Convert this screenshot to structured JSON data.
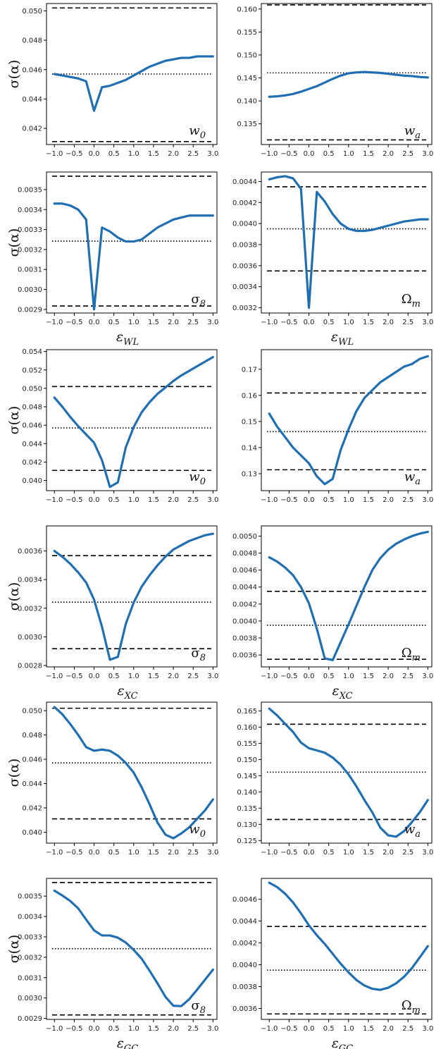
{
  "figure": {
    "ylabel": "σ(α)",
    "colors": {
      "curve": "#1f6fb2",
      "reference": "#000000",
      "axes": "#000000"
    }
  },
  "chart_data": [
    {
      "type": "line",
      "row": 0,
      "col": 0,
      "param": "w",
      "param_sub": "0",
      "xlabel_main": "",
      "xlabel_sub": "",
      "x": [
        -1.0,
        -0.8,
        -0.6,
        -0.4,
        -0.2,
        0.0,
        0.2,
        0.4,
        0.6,
        0.8,
        1.0,
        1.2,
        1.4,
        1.6,
        1.8,
        2.0,
        2.2,
        2.4,
        2.6,
        2.8,
        3.0
      ],
      "y": [
        0.0457,
        0.0456,
        0.0455,
        0.0454,
        0.0452,
        0.0432,
        0.0448,
        0.0449,
        0.0451,
        0.0453,
        0.0456,
        0.0459,
        0.0462,
        0.0464,
        0.0466,
        0.0467,
        0.0468,
        0.0468,
        0.0469,
        0.0469,
        0.0469
      ],
      "ylim": [
        0.0409,
        0.0505
      ],
      "yticks": [
        0.042,
        0.044,
        0.046,
        0.048,
        0.05
      ],
      "ytick_labels": [
        "0.042",
        "0.044",
        "0.046",
        "0.048",
        "0.050"
      ],
      "ref_dashed": [
        0.0502,
        0.0411
      ],
      "ref_dotted": 0.0457
    },
    {
      "type": "line",
      "row": 0,
      "col": 1,
      "param": "w",
      "param_sub": "a",
      "xlabel_main": "",
      "xlabel_sub": "",
      "x": [
        -1.0,
        -0.8,
        -0.6,
        -0.4,
        -0.2,
        0.0,
        0.2,
        0.4,
        0.6,
        0.8,
        1.0,
        1.2,
        1.4,
        1.6,
        1.8,
        2.0,
        2.2,
        2.4,
        2.6,
        2.8,
        3.0
      ],
      "y": [
        0.1409,
        0.141,
        0.1412,
        0.1415,
        0.142,
        0.1426,
        0.1432,
        0.144,
        0.1448,
        0.1455,
        0.146,
        0.1462,
        0.1463,
        0.1462,
        0.1461,
        0.1459,
        0.1457,
        0.1455,
        0.1454,
        0.1452,
        0.1451
      ],
      "ylim": [
        0.1305,
        0.1612
      ],
      "yticks": [
        0.135,
        0.14,
        0.145,
        0.15,
        0.155,
        0.16
      ],
      "ytick_labels": [
        "0.135",
        "0.140",
        "0.145",
        "0.150",
        "0.155",
        "0.160"
      ],
      "ref_dashed": [
        0.1609,
        0.1315
      ],
      "ref_dotted": 0.1461
    },
    {
      "type": "line",
      "row": 1,
      "col": 0,
      "param": "σ",
      "param_sub": "8",
      "xlabel_main": "ε",
      "xlabel_sub": "WL",
      "x": [
        -1.0,
        -0.8,
        -0.6,
        -0.4,
        -0.2,
        0.0,
        0.2,
        0.4,
        0.6,
        0.8,
        1.0,
        1.2,
        1.4,
        1.6,
        1.8,
        2.0,
        2.2,
        2.4,
        2.6,
        2.8,
        3.0
      ],
      "y": [
        0.00343,
        0.00343,
        0.00342,
        0.0034,
        0.00335,
        0.0029,
        0.00331,
        0.00329,
        0.00326,
        0.00324,
        0.00324,
        0.00325,
        0.00328,
        0.00331,
        0.00333,
        0.00335,
        0.00336,
        0.00337,
        0.00337,
        0.00337,
        0.00337
      ],
      "ylim": [
        0.002882,
        0.003588
      ],
      "yticks": [
        0.0029,
        0.003,
        0.0031,
        0.0032,
        0.0033,
        0.0034,
        0.0035
      ],
      "ytick_labels": [
        "0.0029",
        "0.0030",
        "0.0031",
        "0.0032",
        "0.0033",
        "0.0034",
        "0.0035"
      ],
      "ref_dashed": [
        0.003567,
        0.002917
      ],
      "ref_dotted": 0.003242
    },
    {
      "type": "line",
      "row": 1,
      "col": 1,
      "param": "Ω",
      "param_sub": "m",
      "xlabel_main": "ε",
      "xlabel_sub": "WL",
      "x": [
        -1.0,
        -0.8,
        -0.6,
        -0.4,
        -0.2,
        0.0,
        0.2,
        0.4,
        0.6,
        0.8,
        1.0,
        1.2,
        1.4,
        1.6,
        1.8,
        2.0,
        2.2,
        2.4,
        2.6,
        2.8,
        3.0
      ],
      "y": [
        0.00442,
        0.00444,
        0.00445,
        0.00443,
        0.00433,
        0.0032,
        0.0043,
        0.00421,
        0.00409,
        0.004,
        0.00395,
        0.00393,
        0.00393,
        0.00394,
        0.00396,
        0.00398,
        0.004,
        0.00402,
        0.00403,
        0.00404,
        0.00404
      ],
      "ylim": [
        0.00315,
        0.00449
      ],
      "yticks": [
        0.0032,
        0.0034,
        0.0036,
        0.0038,
        0.004,
        0.0042,
        0.0044
      ],
      "ytick_labels": [
        "0.0032",
        "0.0034",
        "0.0036",
        "0.0038",
        "0.0040",
        "0.0042",
        "0.0044"
      ],
      "ref_dashed": [
        0.00435,
        0.00355
      ],
      "ref_dotted": 0.00395
    },
    {
      "type": "line",
      "row": 2,
      "col": 0,
      "param": "w",
      "param_sub": "0",
      "xlabel_main": "",
      "xlabel_sub": "",
      "x": [
        -1.0,
        -0.8,
        -0.6,
        -0.4,
        -0.2,
        0.0,
        0.2,
        0.4,
        0.6,
        0.8,
        1.0,
        1.2,
        1.4,
        1.6,
        1.8,
        2.0,
        2.2,
        2.4,
        2.6,
        2.8,
        3.0
      ],
      "y": [
        0.049,
        0.048,
        0.0469,
        0.0459,
        0.045,
        0.0441,
        0.0422,
        0.0393,
        0.0398,
        0.0436,
        0.0458,
        0.0474,
        0.0485,
        0.0494,
        0.0501,
        0.0508,
        0.0514,
        0.0519,
        0.0524,
        0.0529,
        0.0534
      ],
      "ylim": [
        0.0389,
        0.0542
      ],
      "yticks": [
        0.04,
        0.042,
        0.044,
        0.046,
        0.048,
        0.05,
        0.052,
        0.054
      ],
      "ytick_labels": [
        "0.040",
        "0.042",
        "0.044",
        "0.046",
        "0.048",
        "0.050",
        "0.052",
        "0.054"
      ],
      "ref_dashed": [
        0.0502,
        0.0411
      ],
      "ref_dotted": 0.0457
    },
    {
      "type": "line",
      "row": 2,
      "col": 1,
      "param": "w",
      "param_sub": "a",
      "xlabel_main": "",
      "xlabel_sub": "",
      "x": [
        -1.0,
        -0.8,
        -0.6,
        -0.4,
        -0.2,
        0.0,
        0.2,
        0.4,
        0.6,
        0.8,
        1.0,
        1.2,
        1.4,
        1.6,
        1.8,
        2.0,
        2.2,
        2.4,
        2.6,
        2.8,
        3.0
      ],
      "y": [
        0.153,
        0.148,
        0.144,
        0.14,
        0.137,
        0.134,
        0.129,
        0.126,
        0.128,
        0.139,
        0.147,
        0.154,
        0.159,
        0.162,
        0.165,
        0.167,
        0.169,
        0.171,
        0.172,
        0.174,
        0.175
      ],
      "ylim": [
        0.1235,
        0.1775
      ],
      "yticks": [
        0.13,
        0.14,
        0.15,
        0.16,
        0.17
      ],
      "ytick_labels": [
        "0.13",
        "0.14",
        "0.15",
        "0.16",
        "0.17"
      ],
      "ref_dashed": [
        0.1609,
        0.1315
      ],
      "ref_dotted": 0.1461
    },
    {
      "type": "line",
      "row": 3,
      "col": 0,
      "param": "σ",
      "param_sub": "8",
      "xlabel_main": "ε",
      "xlabel_sub": "XC",
      "x": [
        -1.0,
        -0.8,
        -0.6,
        -0.4,
        -0.2,
        0.0,
        0.2,
        0.4,
        0.6,
        0.8,
        1.0,
        1.2,
        1.4,
        1.6,
        1.8,
        2.0,
        2.2,
        2.4,
        2.6,
        2.8,
        3.0
      ],
      "y": [
        0.0036,
        0.00356,
        0.00351,
        0.00345,
        0.00338,
        0.00326,
        0.00307,
        0.00284,
        0.00286,
        0.00309,
        0.00324,
        0.00335,
        0.00343,
        0.0035,
        0.00356,
        0.00361,
        0.00364,
        0.00367,
        0.00369,
        0.00371,
        0.00372
      ],
      "ylim": [
        0.00279,
        0.003775
      ],
      "yticks": [
        0.0028,
        0.003,
        0.0032,
        0.0034,
        0.0036
      ],
      "ytick_labels": [
        "0.0028",
        "0.0030",
        "0.0032",
        "0.0034",
        "0.0036"
      ],
      "ref_dashed": [
        0.003567,
        0.002917
      ],
      "ref_dotted": 0.003242
    },
    {
      "type": "line",
      "row": 3,
      "col": 1,
      "param": "Ω",
      "param_sub": "m",
      "xlabel_main": "ε",
      "xlabel_sub": "XC",
      "x": [
        -1.0,
        -0.8,
        -0.6,
        -0.4,
        -0.2,
        0.0,
        0.2,
        0.4,
        0.6,
        0.8,
        1.0,
        1.2,
        1.4,
        1.6,
        1.8,
        2.0,
        2.2,
        2.4,
        2.6,
        2.8,
        3.0
      ],
      "y": [
        0.00475,
        0.0047,
        0.00463,
        0.00454,
        0.0044,
        0.00421,
        0.00391,
        0.00356,
        0.00354,
        0.00375,
        0.00396,
        0.00418,
        0.0044,
        0.0046,
        0.00474,
        0.00484,
        0.00491,
        0.00496,
        0.005,
        0.00503,
        0.00505
      ],
      "ylim": [
        0.00346,
        0.00512
      ],
      "yticks": [
        0.0036,
        0.0038,
        0.004,
        0.0042,
        0.0044,
        0.0046,
        0.0048,
        0.005
      ],
      "ytick_labels": [
        "0.0036",
        "0.0038",
        "0.0040",
        "0.0042",
        "0.0044",
        "0.0046",
        "0.0048",
        "0.0050"
      ],
      "ref_dashed": [
        0.00435,
        0.00355
      ],
      "ref_dotted": 0.00395
    },
    {
      "type": "line",
      "row": 4,
      "col": 0,
      "param": "w",
      "param_sub": "0",
      "xlabel_main": "",
      "xlabel_sub": "",
      "x": [
        -1.0,
        -0.8,
        -0.6,
        -0.4,
        -0.2,
        0.0,
        0.2,
        0.4,
        0.6,
        0.8,
        1.0,
        1.2,
        1.4,
        1.6,
        1.8,
        2.0,
        2.2,
        2.4,
        2.6,
        2.8,
        3.0
      ],
      "y": [
        0.0503,
        0.0497,
        0.0489,
        0.048,
        0.047,
        0.0467,
        0.0468,
        0.0467,
        0.0463,
        0.0457,
        0.0449,
        0.0437,
        0.0423,
        0.0408,
        0.0398,
        0.0395,
        0.0399,
        0.0404,
        0.0411,
        0.0418,
        0.0427
      ],
      "ylim": [
        0.0391,
        0.0507
      ],
      "yticks": [
        0.04,
        0.042,
        0.044,
        0.046,
        0.048,
        0.05
      ],
      "ytick_labels": [
        "0.040",
        "0.042",
        "0.044",
        "0.046",
        "0.048",
        "0.050"
      ],
      "ref_dashed": [
        0.0502,
        0.0411
      ],
      "ref_dotted": 0.0457
    },
    {
      "type": "line",
      "row": 4,
      "col": 1,
      "param": "w",
      "param_sub": "a",
      "xlabel_main": "",
      "xlabel_sub": "",
      "x": [
        -1.0,
        -0.8,
        -0.6,
        -0.4,
        -0.2,
        0.0,
        0.2,
        0.4,
        0.6,
        0.8,
        1.0,
        1.2,
        1.4,
        1.6,
        1.8,
        2.0,
        2.2,
        2.4,
        2.6,
        2.8,
        3.0
      ],
      "y": [
        0.1657,
        0.1636,
        0.161,
        0.1585,
        0.1552,
        0.1535,
        0.1528,
        0.1521,
        0.1506,
        0.1484,
        0.1454,
        0.1417,
        0.1375,
        0.1337,
        0.129,
        0.1266,
        0.1262,
        0.1279,
        0.1307,
        0.1338,
        0.1375
      ],
      "ylim": [
        0.1242,
        0.1677
      ],
      "yticks": [
        0.125,
        0.13,
        0.135,
        0.14,
        0.145,
        0.15,
        0.155,
        0.16,
        0.165
      ],
      "ytick_labels": [
        "0.125",
        "0.130",
        "0.135",
        "0.140",
        "0.145",
        "0.150",
        "0.155",
        "0.160",
        "0.165"
      ],
      "ref_dashed": [
        0.1609,
        0.1315
      ],
      "ref_dotted": 0.1461
    },
    {
      "type": "line",
      "row": 5,
      "col": 0,
      "param": "σ",
      "param_sub": "8",
      "xlabel_main": "ε",
      "xlabel_sub": "GC",
      "x": [
        -1.0,
        -0.8,
        -0.6,
        -0.4,
        -0.2,
        0.0,
        0.2,
        0.4,
        0.6,
        0.8,
        1.0,
        1.2,
        1.4,
        1.6,
        1.8,
        2.0,
        2.2,
        2.4,
        2.6,
        2.8,
        3.0
      ],
      "y": [
        0.003527,
        0.003503,
        0.003476,
        0.00344,
        0.003385,
        0.003332,
        0.003307,
        0.003307,
        0.003296,
        0.003272,
        0.003236,
        0.003193,
        0.003134,
        0.003072,
        0.003006,
        0.002962,
        0.00296,
        0.002994,
        0.003041,
        0.00309,
        0.003139
      ],
      "ylim": [
        0.002895,
        0.003587
      ],
      "yticks": [
        0.0029,
        0.003,
        0.0031,
        0.0032,
        0.0033,
        0.0034,
        0.0035
      ],
      "ytick_labels": [
        "0.0029",
        "0.0030",
        "0.0031",
        "0.0032",
        "0.0033",
        "0.0034",
        "0.0035"
      ],
      "ref_dashed": [
        0.003567,
        0.002917
      ],
      "ref_dotted": 0.003242
    },
    {
      "type": "line",
      "row": 5,
      "col": 1,
      "param": "Ω",
      "param_sub": "m",
      "xlabel_main": "ε",
      "xlabel_sub": "GC",
      "x": [
        -1.0,
        -0.8,
        -0.6,
        -0.4,
        -0.2,
        0.0,
        0.2,
        0.4,
        0.6,
        0.8,
        1.0,
        1.2,
        1.4,
        1.6,
        1.8,
        2.0,
        2.2,
        2.4,
        2.6,
        2.8,
        3.0
      ],
      "y": [
        0.00475,
        0.00471,
        0.00465,
        0.00457,
        0.00447,
        0.00436,
        0.00427,
        0.00419,
        0.0041,
        0.00401,
        0.00393,
        0.00386,
        0.00381,
        0.00378,
        0.00377,
        0.00379,
        0.00383,
        0.00389,
        0.00397,
        0.00407,
        0.00417
      ],
      "ylim": [
        0.0035,
        0.00479
      ],
      "yticks": [
        0.0036,
        0.0038,
        0.004,
        0.0042,
        0.0044,
        0.0046
      ],
      "ytick_labels": [
        "0.0036",
        "0.0038",
        "0.0040",
        "0.0042",
        "0.0044",
        "0.0046"
      ],
      "ref_dashed": [
        0.00435,
        0.00355
      ],
      "ref_dotted": 0.00395
    }
  ],
  "x_axis": {
    "xlim": [
      -1.2,
      3.1
    ],
    "ticks": [
      -1.0,
      -0.5,
      0.0,
      0.5,
      1.0,
      1.5,
      2.0,
      2.5,
      3.0
    ],
    "tick_labels": [
      "−1.0",
      "−0.5",
      "0.0",
      "0.5",
      "1.0",
      "1.5",
      "2.0",
      "2.5",
      "3.0"
    ]
  }
}
